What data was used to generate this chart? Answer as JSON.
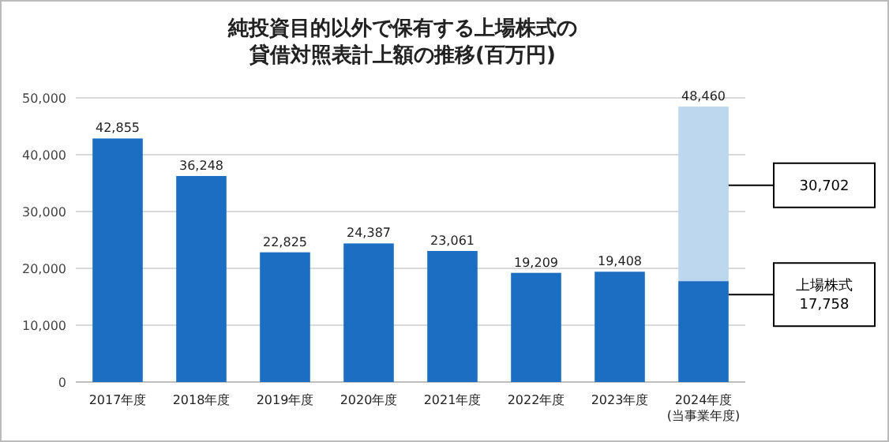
{
  "chart_data": {
    "type": "bar",
    "stacked": true,
    "title": "純投資目的以外で保有する上場株式の貸借対照表計上額の推移(百万円)",
    "categories": [
      "2017年度",
      "2018年度",
      "2019年度",
      "2020年度",
      "2021年度",
      "2022年度",
      "2023年度",
      "2024年度\n(当事業年度)"
    ],
    "series": [
      {
        "color": "#1b6ec2",
        "values": [
          42855,
          36248,
          22825,
          24387,
          23061,
          19209,
          19408,
          17758
        ]
      },
      {
        "color": "#bdd7ee",
        "values": [
          null,
          null,
          null,
          null,
          null,
          null,
          null,
          30702
        ]
      }
    ],
    "totals": [
      "42,855",
      "36,248",
      "22,825",
      "24,387",
      "23,061",
      "19,209",
      "19,408",
      "48,460"
    ],
    "ylim": [
      0,
      50000
    ],
    "yticks": [
      {
        "value": 0,
        "label": "0"
      },
      {
        "value": 10000,
        "label": "10,000"
      },
      {
        "value": 20000,
        "label": "20,000"
      },
      {
        "value": 30000,
        "label": "30,000"
      },
      {
        "value": 40000,
        "label": "40,000"
      },
      {
        "value": 50000,
        "label": "50,000"
      }
    ],
    "grid": "y",
    "annotations": [
      "30,702",
      "上場株式\n17,758"
    ]
  }
}
